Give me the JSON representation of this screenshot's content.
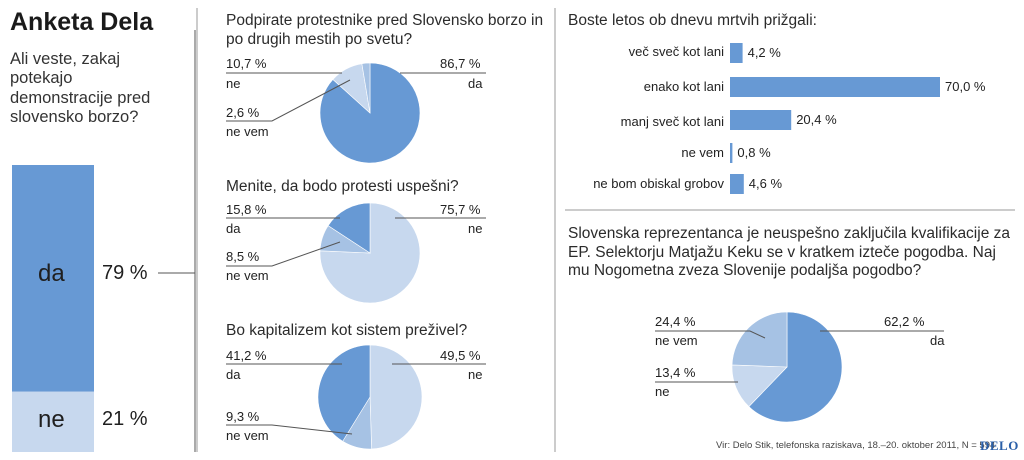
{
  "title": "Anketa Dela",
  "subtitle": "Ali veste, zakaj potekajo demonstracije pred slovensko borzo?",
  "source": "Vir: Delo Stik, telefonska raziskava, 18.–20. oktober 2011, N = 594",
  "logo": "DELO",
  "colors": {
    "dark": "#6799d4",
    "light": "#c7d8ee",
    "mid": "#a6c2e4",
    "line": "#555555"
  },
  "chart_data": [
    {
      "type": "bar",
      "orientation": "stacked-vertical",
      "categories": [
        "da",
        "ne"
      ],
      "labels": [
        "da",
        "ne"
      ],
      "values": [
        79,
        21
      ],
      "value_labels": [
        "79 %",
        "21 %"
      ]
    },
    {
      "type": "pie",
      "title": "Podpirate protestnike pred Slovensko borzo in po drugih mestih po svetu?",
      "slices": [
        {
          "label": "da",
          "value": 86.7,
          "value_label": "86,7 %"
        },
        {
          "label": "ne",
          "value": 10.7,
          "value_label": "10,7 %"
        },
        {
          "label": "ne vem",
          "value": 2.6,
          "value_label": "2,6 %"
        }
      ]
    },
    {
      "type": "pie",
      "title": "Menite, da bodo protesti uspešni?",
      "slices": [
        {
          "label": "ne",
          "value": 75.7,
          "value_label": "75,7 %"
        },
        {
          "label": "ne vem",
          "value": 8.5,
          "value_label": "8,5 %"
        },
        {
          "label": "da",
          "value": 15.8,
          "value_label": "15,8 %"
        }
      ]
    },
    {
      "type": "pie",
      "title": "Bo kapitalizem kot sistem preživel?",
      "slices": [
        {
          "label": "ne",
          "value": 49.5,
          "value_label": "49,5 %"
        },
        {
          "label": "ne vem",
          "value": 9.3,
          "value_label": "9,3 %"
        },
        {
          "label": "da",
          "value": 41.2,
          "value_label": "41,2 %"
        }
      ]
    },
    {
      "type": "bar",
      "orientation": "horizontal",
      "title": "Boste letos ob dnevu mrtvih prižgali:",
      "categories": [
        "več sveč kot lani",
        "enako kot lani",
        "manj sveč kot lani",
        "ne vem",
        "ne bom obiskal grobov"
      ],
      "values": [
        4.2,
        70.0,
        20.4,
        0.8,
        4.6
      ],
      "value_labels": [
        "4,2 %",
        "70,0 %",
        "20,4 %",
        "0,8 %",
        "4,6 %"
      ]
    },
    {
      "type": "pie",
      "title": "Slovenska reprezentanca je neuspešno zaključila kvalifikacije za EP. Selektorju Matjažu Keku se v kratkem izteče pogodba. Naj mu Nogometna zveza Slovenije podaljša pogodbo?",
      "slices": [
        {
          "label": "da",
          "value": 62.2,
          "value_label": "62,2 %"
        },
        {
          "label": "ne",
          "value": 13.4,
          "value_label": "13,4 %"
        },
        {
          "label": "ne vem",
          "value": 24.4,
          "value_label": "24,4 %"
        }
      ]
    }
  ]
}
